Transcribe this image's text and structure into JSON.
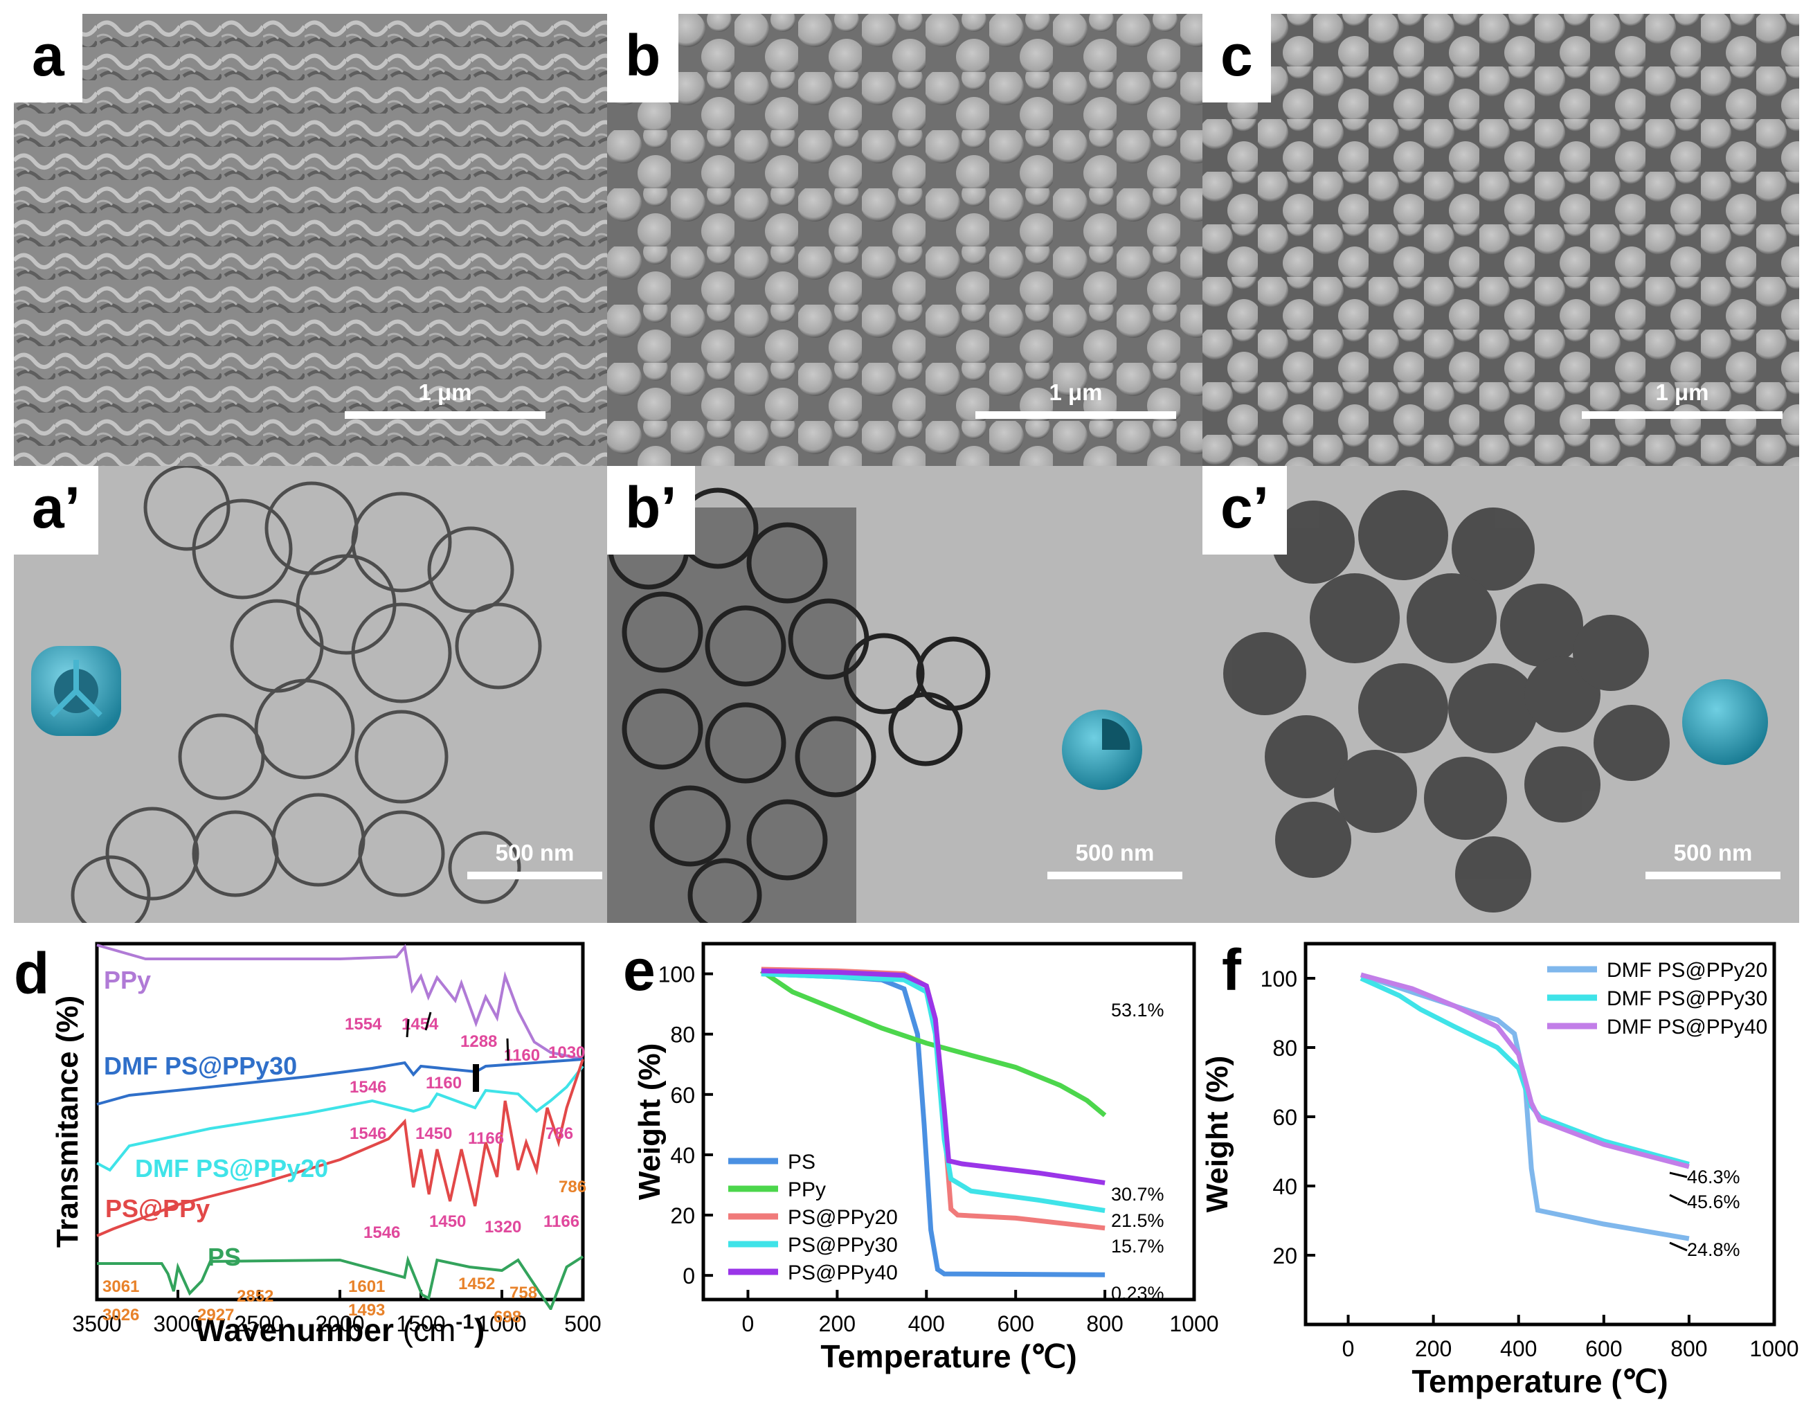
{
  "panels": {
    "a": {
      "label": "a",
      "scale": "1 μm"
    },
    "b": {
      "label": "b",
      "scale": "1 μm"
    },
    "c": {
      "label": "c",
      "scale": "1 μm"
    },
    "a2": {
      "label": "a’",
      "scale": "500 nm"
    },
    "b2": {
      "label": "b’",
      "scale": "500 nm"
    },
    "c2": {
      "label": "c’",
      "scale": "500 nm"
    }
  },
  "colors": {
    "PPy_purple": "#b07ad6",
    "DMF30_blue": "#2f6fc9",
    "DMF20_cyan": "#3fe3e8",
    "PSPPy_red": "#e24848",
    "PS_green": "#33a35c",
    "PS_blue_tga": "#4a90e2",
    "PPy_green_tga": "#4cd64c",
    "PSPPy20_salmon": "#f07a7a",
    "PSPPy40_violet": "#9a35e8",
    "DMF20_lightblue": "#7fb7ec",
    "DMF40_lilac": "#c27ee8",
    "peak_pink": "#e0489c",
    "peak_orange": "#e8822a"
  },
  "chart_data": [
    {
      "panel": "d",
      "type": "line",
      "label": "d",
      "xlabel": "Wavenumber",
      "xunit": "(cm",
      "xunit_sup": "-1",
      "xunit_close": ")",
      "ylabel": "Transmitance (%)",
      "xlim": [
        3500,
        500
      ],
      "xticks": [
        "3500",
        "3000",
        "2500",
        "2000",
        "1500",
        "1000",
        "500"
      ],
      "series": [
        {
          "name": "PPy",
          "color": "#b07ad6"
        },
        {
          "name": "DMF PS@PPy30",
          "color": "#2f6fc9"
        },
        {
          "name": "DMF PS@PPy20",
          "color": "#3fe3e8"
        },
        {
          "name": "PS@PPy",
          "color": "#e24848"
        },
        {
          "name": "PS",
          "color": "#33a35c"
        }
      ],
      "peaks_ppy": [
        "1554",
        "1454",
        "1288",
        "1160",
        "1030"
      ],
      "peaks_dmf30": [
        "1546",
        "1160"
      ],
      "peaks_dmf20": [
        "1546",
        "1450",
        "1166",
        "786"
      ],
      "peaks_pspy": [
        "1546",
        "1450",
        "1320",
        "1166",
        "786"
      ],
      "peaks_ps": [
        "3061",
        "3026",
        "2852",
        "2927",
        "1601",
        "1493",
        "1452",
        "758",
        "698"
      ]
    },
    {
      "panel": "e",
      "type": "line",
      "label": "e",
      "xlabel": "Temperature (℃)",
      "ylabel": "Weight (%)",
      "xlim": [
        -100,
        1000
      ],
      "ylim": [
        -8,
        110
      ],
      "xticks": [
        "0",
        "200",
        "400",
        "600",
        "800",
        "1000"
      ],
      "yticks": [
        "0",
        "20",
        "40",
        "60",
        "80",
        "100"
      ],
      "series": [
        {
          "name": "PS",
          "color": "#4a90e2",
          "end_label": "0.23%",
          "points": [
            [
              30,
              100
            ],
            [
              200,
              99
            ],
            [
              300,
              98
            ],
            [
              350,
              95
            ],
            [
              380,
              80
            ],
            [
              395,
              50
            ],
            [
              410,
              15
            ],
            [
              425,
              2
            ],
            [
              440,
              0.5
            ],
            [
              800,
              0.23
            ]
          ]
        },
        {
          "name": "PPy",
          "color": "#4cd64c",
          "end_label": "53.1%",
          "points": [
            [
              30,
              101
            ],
            [
              100,
              94
            ],
            [
              200,
              88
            ],
            [
              300,
              82
            ],
            [
              400,
              77
            ],
            [
              500,
              73
            ],
            [
              600,
              69
            ],
            [
              700,
              63
            ],
            [
              760,
              58
            ],
            [
              800,
              53.1
            ]
          ]
        },
        {
          "name": "PS@PPy20",
          "color": "#f07a7a",
          "end_label": "15.7%",
          "points": [
            [
              30,
              101.5
            ],
            [
              200,
              101
            ],
            [
              350,
              100
            ],
            [
              400,
              96
            ],
            [
              420,
              85
            ],
            [
              440,
              50
            ],
            [
              455,
              22
            ],
            [
              470,
              20
            ],
            [
              600,
              19
            ],
            [
              800,
              15.7
            ]
          ]
        },
        {
          "name": "PS@PPy30",
          "color": "#3fe3e8",
          "end_label": "21.5%",
          "points": [
            [
              30,
              100
            ],
            [
              200,
              99
            ],
            [
              350,
              98
            ],
            [
              400,
              94
            ],
            [
              420,
              80
            ],
            [
              440,
              45
            ],
            [
              455,
              32
            ],
            [
              500,
              28
            ],
            [
              650,
              25
            ],
            [
              800,
              21.5
            ]
          ]
        },
        {
          "name": "PS@PPy40",
          "color": "#9a35e8",
          "end_label": "30.7%",
          "points": [
            [
              30,
              101
            ],
            [
              200,
              100.5
            ],
            [
              350,
              99.5
            ],
            [
              400,
              96
            ],
            [
              420,
              85
            ],
            [
              440,
              55
            ],
            [
              450,
              38
            ],
            [
              480,
              37
            ],
            [
              650,
              34
            ],
            [
              800,
              30.7
            ]
          ]
        }
      ]
    },
    {
      "panel": "f",
      "type": "line",
      "label": "f",
      "xlabel": "Temperature (℃)",
      "ylabel": "Weight (%)",
      "xlim": [
        -100,
        1000
      ],
      "ylim": [
        0,
        110
      ],
      "xticks": [
        "0",
        "200",
        "400",
        "600",
        "800",
        "1000"
      ],
      "yticks": [
        "20",
        "40",
        "60",
        "80",
        "100"
      ],
      "series": [
        {
          "name": "DMF PS@PPy20",
          "color": "#7fb7ec",
          "end_label": "24.8%",
          "points": [
            [
              30,
              101
            ],
            [
              150,
              96
            ],
            [
              250,
              92
            ],
            [
              350,
              88
            ],
            [
              390,
              84
            ],
            [
              415,
              70
            ],
            [
              430,
              45
            ],
            [
              445,
              33
            ],
            [
              600,
              29
            ],
            [
              800,
              24.8
            ]
          ]
        },
        {
          "name": "DMF PS@PPy30",
          "color": "#3fe3e8",
          "end_label": "46.3%",
          "points": [
            [
              30,
              100
            ],
            [
              120,
              95
            ],
            [
              170,
              91
            ],
            [
              250,
              86
            ],
            [
              350,
              80
            ],
            [
              400,
              74
            ],
            [
              430,
              63
            ],
            [
              450,
              60
            ],
            [
              600,
              53
            ],
            [
              800,
              46.3
            ]
          ]
        },
        {
          "name": "DMF PS@PPy40",
          "color": "#c27ee8",
          "end_label": "45.6%",
          "points": [
            [
              30,
              101
            ],
            [
              150,
              97
            ],
            [
              250,
              92
            ],
            [
              350,
              86
            ],
            [
              400,
              78
            ],
            [
              430,
              64
            ],
            [
              450,
              59
            ],
            [
              600,
              52
            ],
            [
              800,
              45.6
            ]
          ]
        }
      ]
    }
  ]
}
